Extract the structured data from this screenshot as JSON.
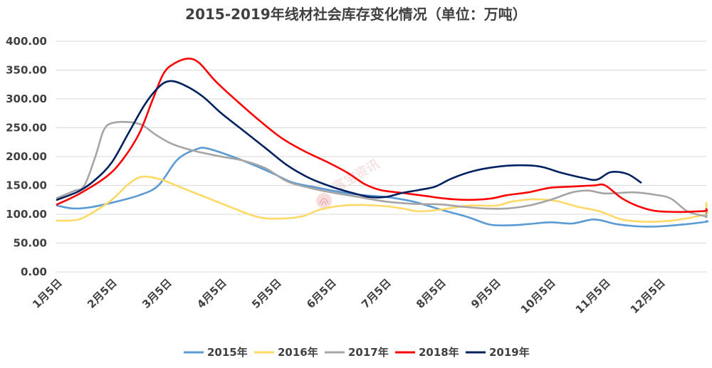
{
  "chart_data": {
    "type": "line",
    "title": "2015-2019年线材社会库存变化情况（单位：万吨）",
    "watermark": "富宝资讯",
    "ylim": [
      0,
      400
    ],
    "y_ticks": [
      "0.00",
      "50.00",
      "100.00",
      "150.00",
      "200.00",
      "250.00",
      "300.00",
      "350.00",
      "400.00"
    ],
    "x_tick_labels": [
      "1月5日",
      "2月5日",
      "3月5日",
      "4月5日",
      "5月5日",
      "6月5日",
      "7月5日",
      "8月5日",
      "9月5日",
      "10月5日",
      "11月5日",
      "12月5日"
    ],
    "grid": true,
    "legend_position": "bottom",
    "series": [
      {
        "name": "2015年",
        "color": "#5b9bd5",
        "points": [
          [
            0,
            115
          ],
          [
            0.3,
            110
          ],
          [
            0.6,
            112
          ],
          [
            1.0,
            120
          ],
          [
            1.5,
            133
          ],
          [
            1.85,
            150
          ],
          [
            2.2,
            195
          ],
          [
            2.55,
            213
          ],
          [
            2.75,
            214
          ],
          [
            3.2,
            200
          ],
          [
            3.6,
            185
          ],
          [
            4.0,
            168
          ],
          [
            4.3,
            155
          ],
          [
            4.7,
            147
          ],
          [
            5.2,
            138
          ],
          [
            5.6,
            133
          ],
          [
            6.0,
            130
          ],
          [
            6.5,
            122
          ],
          [
            7.0,
            108
          ],
          [
            7.5,
            95
          ],
          [
            7.9,
            82
          ],
          [
            8.3,
            81
          ],
          [
            8.6,
            83
          ],
          [
            9.0,
            86
          ],
          [
            9.4,
            84
          ],
          [
            9.8,
            91
          ],
          [
            10.2,
            83
          ],
          [
            10.6,
            79
          ],
          [
            11.0,
            79
          ],
          [
            11.5,
            83
          ],
          [
            12.0,
            87
          ],
          [
            12.3,
            88
          ],
          [
            12.5,
            87
          ]
        ]
      },
      {
        "name": "2016年",
        "color": "#ffd966",
        "points": [
          [
            0,
            89
          ],
          [
            0.35,
            90
          ],
          [
            0.6,
            100
          ],
          [
            1.0,
            125
          ],
          [
            1.3,
            152
          ],
          [
            1.55,
            165
          ],
          [
            1.9,
            160
          ],
          [
            2.3,
            145
          ],
          [
            2.7,
            130
          ],
          [
            3.1,
            115
          ],
          [
            3.5,
            100
          ],
          [
            3.8,
            93
          ],
          [
            4.2,
            93
          ],
          [
            4.5,
            97
          ],
          [
            4.8,
            108
          ],
          [
            5.2,
            115
          ],
          [
            5.6,
            116
          ],
          [
            6.0,
            114
          ],
          [
            6.3,
            110
          ],
          [
            6.6,
            105
          ],
          [
            7.0,
            108
          ],
          [
            7.5,
            115
          ],
          [
            8.0,
            115
          ],
          [
            8.3,
            122
          ],
          [
            8.7,
            126
          ],
          [
            9.1,
            123
          ],
          [
            9.5,
            113
          ],
          [
            9.9,
            105
          ],
          [
            10.3,
            91
          ],
          [
            10.7,
            87
          ],
          [
            11.1,
            88
          ],
          [
            11.5,
            93
          ],
          [
            12.0,
            101
          ],
          [
            12.3,
            108
          ],
          [
            12.5,
            120
          ]
        ]
      },
      {
        "name": "2017年",
        "color": "#a5a5a5",
        "points": [
          [
            0,
            128
          ],
          [
            0.3,
            140
          ],
          [
            0.5,
            150
          ],
          [
            0.7,
            200
          ],
          [
            0.85,
            245
          ],
          [
            1.0,
            258
          ],
          [
            1.3,
            260
          ],
          [
            1.55,
            255
          ],
          [
            1.8,
            238
          ],
          [
            2.1,
            222
          ],
          [
            2.5,
            210
          ],
          [
            3.0,
            200
          ],
          [
            3.4,
            193
          ],
          [
            3.8,
            180
          ],
          [
            4.2,
            157
          ],
          [
            4.6,
            146
          ],
          [
            5.0,
            138
          ],
          [
            5.5,
            130
          ],
          [
            6.0,
            122
          ],
          [
            6.5,
            118
          ],
          [
            7.0,
            117
          ],
          [
            7.4,
            113
          ],
          [
            7.8,
            110
          ],
          [
            8.2,
            110
          ],
          [
            8.6,
            115
          ],
          [
            9.0,
            125
          ],
          [
            9.4,
            138
          ],
          [
            9.7,
            141
          ],
          [
            10.0,
            136
          ],
          [
            10.5,
            138
          ],
          [
            10.9,
            134
          ],
          [
            11.2,
            127
          ],
          [
            11.5,
            105
          ],
          [
            11.8,
            97
          ],
          [
            12.1,
            95
          ],
          [
            12.3,
            100
          ],
          [
            12.5,
            105
          ]
        ]
      },
      {
        "name": "2018年",
        "color": "#ff0000",
        "points": [
          [
            0,
            117
          ],
          [
            0.4,
            135
          ],
          [
            0.9,
            165
          ],
          [
            1.2,
            195
          ],
          [
            1.5,
            240
          ],
          [
            1.75,
            300
          ],
          [
            1.95,
            345
          ],
          [
            2.15,
            362
          ],
          [
            2.4,
            370
          ],
          [
            2.6,
            362
          ],
          [
            2.9,
            330
          ],
          [
            3.3,
            295
          ],
          [
            3.7,
            262
          ],
          [
            4.1,
            232
          ],
          [
            4.5,
            210
          ],
          [
            4.9,
            192
          ],
          [
            5.3,
            172
          ],
          [
            5.6,
            153
          ],
          [
            5.9,
            142
          ],
          [
            6.3,
            137
          ],
          [
            6.7,
            132
          ],
          [
            7.1,
            127
          ],
          [
            7.5,
            125
          ],
          [
            7.9,
            127
          ],
          [
            8.2,
            133
          ],
          [
            8.6,
            138
          ],
          [
            9.0,
            146
          ],
          [
            9.4,
            148
          ],
          [
            9.8,
            150
          ],
          [
            10.0,
            150
          ],
          [
            10.3,
            128
          ],
          [
            10.6,
            114
          ],
          [
            10.9,
            106
          ],
          [
            11.3,
            104
          ],
          [
            11.7,
            105
          ],
          [
            12.1,
            106
          ],
          [
            12.5,
            109
          ]
        ]
      },
      {
        "name": "2019年",
        "color": "#002060",
        "points": [
          [
            0,
            125
          ],
          [
            0.4,
            140
          ],
          [
            0.7,
            160
          ],
          [
            1.0,
            190
          ],
          [
            1.3,
            240
          ],
          [
            1.6,
            290
          ],
          [
            1.85,
            320
          ],
          [
            2.05,
            331
          ],
          [
            2.3,
            325
          ],
          [
            2.65,
            305
          ],
          [
            3.0,
            275
          ],
          [
            3.4,
            245
          ],
          [
            3.8,
            215
          ],
          [
            4.2,
            185
          ],
          [
            4.6,
            163
          ],
          [
            5.0,
            148
          ],
          [
            5.35,
            138
          ],
          [
            5.7,
            130
          ],
          [
            6.0,
            130
          ],
          [
            6.3,
            137
          ],
          [
            6.6,
            142
          ],
          [
            6.9,
            148
          ],
          [
            7.2,
            162
          ],
          [
            7.6,
            175
          ],
          [
            8.0,
            182
          ],
          [
            8.4,
            185
          ],
          [
            8.8,
            183
          ],
          [
            9.2,
            172
          ],
          [
            9.6,
            163
          ],
          [
            9.85,
            160
          ],
          [
            10.1,
            173
          ],
          [
            10.4,
            170
          ],
          [
            10.65,
            155
          ]
        ]
      }
    ]
  }
}
